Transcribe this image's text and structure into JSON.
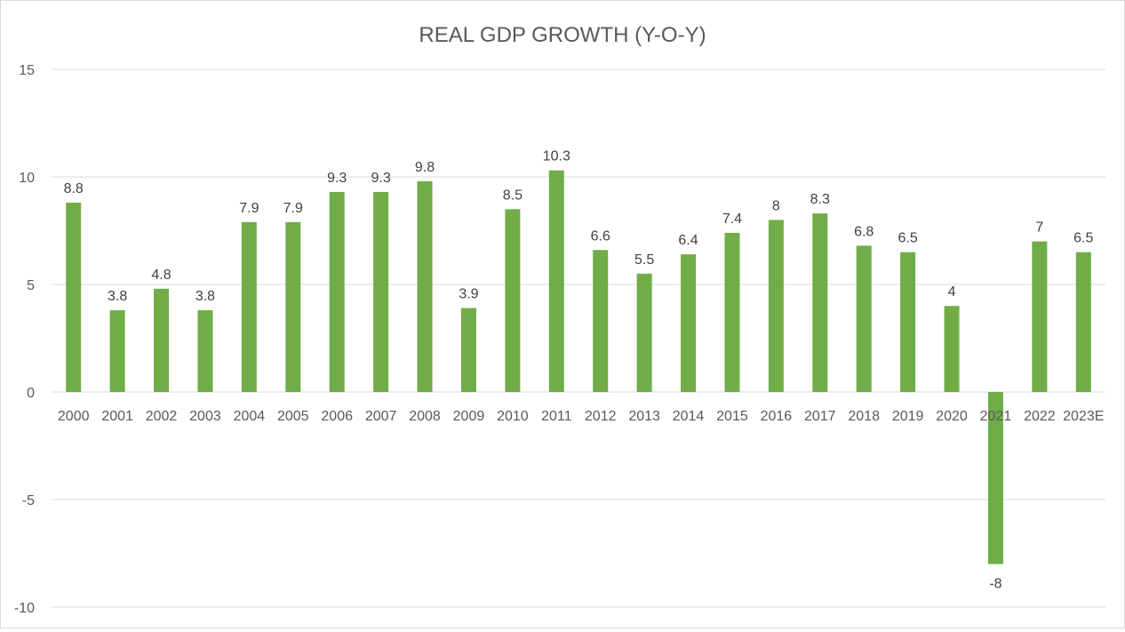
{
  "chart_data": {
    "type": "bar",
    "title": "REAL GDP GROWTH (Y-O-Y)",
    "xlabel": "",
    "ylabel": "",
    "ylim": [
      -10,
      15
    ],
    "yticks": [
      15,
      10,
      5,
      0,
      -5,
      -10
    ],
    "grid": true,
    "legend": "none",
    "categories": [
      "2000",
      "2001",
      "2002",
      "2003",
      "2004",
      "2005",
      "2006",
      "2007",
      "2008",
      "2009",
      "2010",
      "2011",
      "2012",
      "2013",
      "2014",
      "2015",
      "2016",
      "2017",
      "2018",
      "2019",
      "2020",
      "2021",
      "2022",
      "2023E"
    ],
    "values": [
      8.8,
      3.8,
      4.8,
      3.8,
      7.9,
      7.9,
      9.3,
      9.3,
      9.8,
      3.9,
      8.5,
      10.3,
      6.6,
      5.5,
      6.4,
      7.4,
      8,
      8.3,
      6.8,
      6.5,
      4,
      -8,
      7,
      6.5
    ],
    "colors": {
      "bar": "#70AD47",
      "grid": "#d9d9d9",
      "text": "#595959",
      "label": "#404040"
    }
  }
}
